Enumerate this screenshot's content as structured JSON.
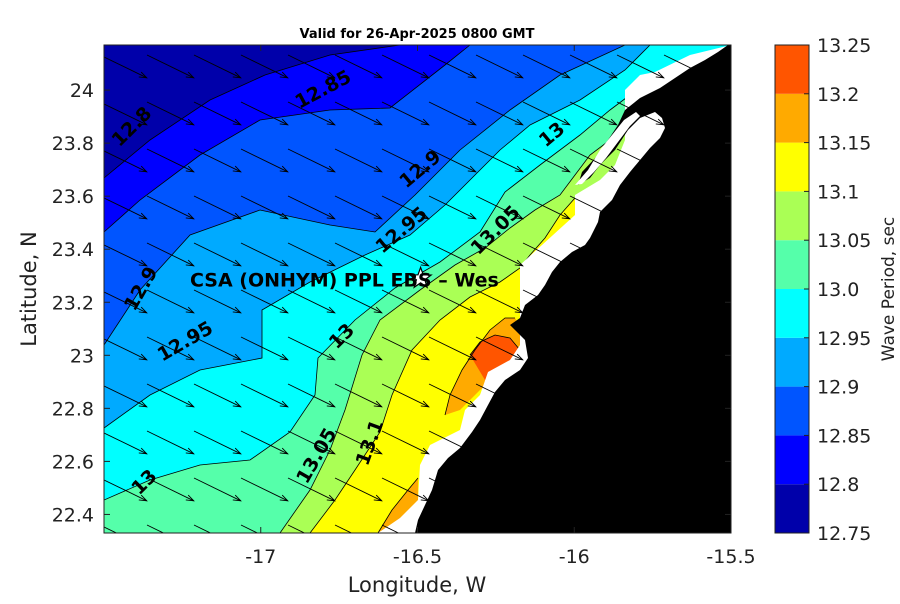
{
  "chart_data": {
    "type": "heatmap",
    "title": "Valid for 26-Apr-2025 0800 GMT",
    "xlabel": "Longitude, W",
    "ylabel": "Latitude, N",
    "xlim": [
      -17.5,
      -15.5
    ],
    "ylim": [
      22.33,
      24.17
    ],
    "x_ticks": [
      -17,
      -16.5,
      -16,
      -15.5
    ],
    "y_ticks": [
      22.4,
      22.6,
      22.8,
      23,
      23.2,
      23.4,
      23.6,
      23.8,
      24
    ],
    "colorbar": {
      "label": "Wave Period, sec",
      "ticks": [
        12.75,
        12.8,
        12.85,
        12.9,
        12.95,
        13,
        13.05,
        13.1,
        13.15,
        13.2,
        13.25
      ],
      "bands": [
        {
          "from": 12.75,
          "to": 12.8,
          "color": "#0000aa"
        },
        {
          "from": 12.8,
          "to": 12.85,
          "color": "#0000ff"
        },
        {
          "from": 12.85,
          "to": 12.9,
          "color": "#0055ff"
        },
        {
          "from": 12.9,
          "to": 12.95,
          "color": "#00aaff"
        },
        {
          "from": 12.95,
          "to": 13.0,
          "color": "#00ffff"
        },
        {
          "from": 13.0,
          "to": 13.05,
          "color": "#55ffaa"
        },
        {
          "from": 13.05,
          "to": 13.1,
          "color": "#aaff55"
        },
        {
          "from": 13.1,
          "to": 13.15,
          "color": "#ffff00"
        },
        {
          "from": 13.15,
          "to": 13.2,
          "color": "#ffaa00"
        },
        {
          "from": 13.2,
          "to": 13.25,
          "color": "#ff5500"
        }
      ]
    },
    "contour_labels": [
      {
        "text": "12.8",
        "lon": -17.41,
        "lat": 23.86,
        "angle": -45
      },
      {
        "text": "12.85",
        "lon": -16.8,
        "lat": 24.0,
        "angle": -28
      },
      {
        "text": "12.9",
        "lon": -16.49,
        "lat": 23.7,
        "angle": -40
      },
      {
        "text": "12.95",
        "lon": -16.55,
        "lat": 23.47,
        "angle": -40
      },
      {
        "text": "13.05",
        "lon": -16.25,
        "lat": 23.47,
        "angle": -45
      },
      {
        "text": "13",
        "lon": -16.07,
        "lat": 23.83,
        "angle": -40
      },
      {
        "text": "12.9",
        "lon": -17.38,
        "lat": 23.25,
        "angle": -60
      },
      {
        "text": "12.95",
        "lon": -17.24,
        "lat": 23.05,
        "angle": -30
      },
      {
        "text": "13",
        "lon": -16.74,
        "lat": 23.07,
        "angle": -45
      },
      {
        "text": "13.05",
        "lon": -16.82,
        "lat": 22.62,
        "angle": -60
      },
      {
        "text": "13.1",
        "lon": -16.65,
        "lat": 22.67,
        "angle": -70
      },
      {
        "text": "13",
        "lon": -17.37,
        "lat": 22.52,
        "angle": -45
      }
    ],
    "site": {
      "name": "CSA (ONHYM) PPL EBS - West",
      "display_name": "CSA (ONHYM) PPL EBS  – Wes",
      "lon": -16.49,
      "lat": 23.29,
      "marker": "star"
    },
    "vector_field": {
      "direction_deg_from_east": -26,
      "description": "wave direction arrows pointing ESE"
    }
  },
  "colors": {
    "land": "#000000",
    "coast_fill": "#ffffff",
    "arrow": "#000000",
    "contour_line": "#000000"
  }
}
